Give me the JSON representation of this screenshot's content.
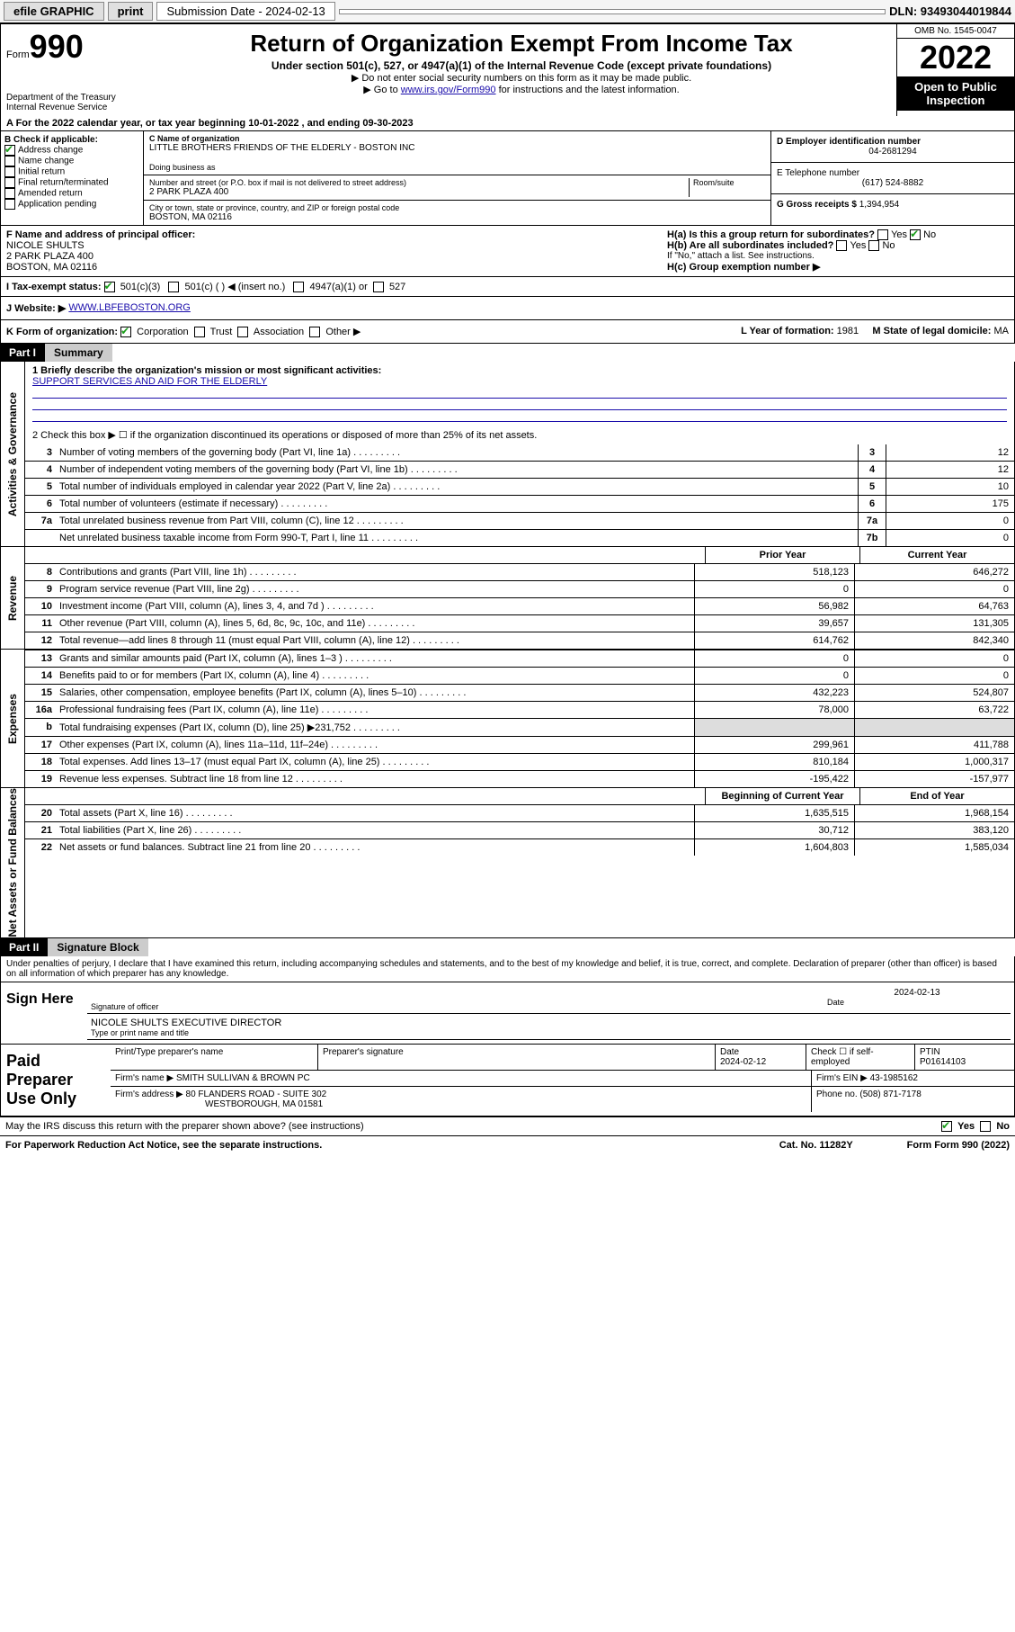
{
  "colors": {
    "bg": "#ffffff",
    "text": "#000000",
    "link": "#1a0dab",
    "check": "#1a9e1a",
    "header_black": "#000000",
    "header_grey": "#cccccc",
    "grey_fill": "#dddddd"
  },
  "topbar": {
    "efile": "efile GRAPHIC",
    "print": "print",
    "sub_label": "Submission Date - 2024-02-13",
    "dln": "DLN: 93493044019844"
  },
  "header": {
    "form_label": "Form",
    "form_number": "990",
    "title": "Return of Organization Exempt From Income Tax",
    "subtitle": "Under section 501(c), 527, or 4947(a)(1) of the Internal Revenue Code (except private foundations)",
    "line1": "▶ Do not enter social security numbers on this form as it may be made public.",
    "line2_pre": "▶ Go to ",
    "line2_link": "www.irs.gov/Form990",
    "line2_post": " for instructions and the latest information.",
    "dept": "Department of the Treasury",
    "irs": "Internal Revenue Service",
    "omb": "OMB No. 1545-0047",
    "year": "2022",
    "open": "Open to Public Inspection"
  },
  "lineA": {
    "text_pre": "A For the 2022 calendar year, or tax year beginning ",
    "begin": "10-01-2022",
    "mid": "  , and ending ",
    "end": "09-30-2023"
  },
  "sectionB": {
    "b_title": "B Check if applicable:",
    "items": [
      {
        "label": "Address change",
        "checked": true
      },
      {
        "label": "Name change",
        "checked": false
      },
      {
        "label": "Initial return",
        "checked": false
      },
      {
        "label": "Final return/terminated",
        "checked": false
      },
      {
        "label": "Amended return",
        "checked": false
      },
      {
        "label": "Application pending",
        "checked": false
      }
    ],
    "c_name_label": "C Name of organization",
    "c_name": "LITTLE BROTHERS FRIENDS OF THE ELDERLY - BOSTON INC",
    "dba_label": "Doing business as",
    "dba": "",
    "street_label": "Number and street (or P.O. box if mail is not delivered to street address)",
    "room_label": "Room/suite",
    "street": "2 PARK PLAZA 400",
    "city_label": "City or town, state or province, country, and ZIP or foreign postal code",
    "city": "BOSTON, MA  02116",
    "d_label": "D Employer identification number",
    "d_ein": "04-2681294",
    "e_label": "E Telephone number",
    "e_phone": "(617) 524-8882",
    "g_label": "G Gross receipts $",
    "g_val": "1,394,954"
  },
  "rowFG": {
    "f_label": "F Name and address of principal officer:",
    "f_name": "NICOLE SHULTS",
    "f_addr1": "2 PARK PLAZA 400",
    "f_addr2": "BOSTON, MA  02116",
    "ha_label": "H(a)  Is this a group return for subordinates?",
    "ha_yes": "Yes",
    "ha_no": "No",
    "hb_label": "H(b)  Are all subordinates included?",
    "hb_yes": "Yes",
    "hb_no": "No",
    "hb_note": "If \"No,\" attach a list. See instructions.",
    "hc_label": "H(c)  Group exemption number ▶"
  },
  "lineI": {
    "label": "I    Tax-exempt status:",
    "opt1": "501(c)(3)",
    "opt2": "501(c) (  ) ◀ (insert no.)",
    "opt3": "4947(a)(1) or",
    "opt4": "527"
  },
  "lineJ": {
    "label": "J   Website: ▶",
    "value": "WWW.LBFEBOSTON.ORG"
  },
  "lineK": {
    "label": "K Form of organization:",
    "opts": [
      "Corporation",
      "Trust",
      "Association",
      "Other ▶"
    ],
    "l_label": "L Year of formation: ",
    "l_val": "1981",
    "m_label": "M State of legal domicile: ",
    "m_val": "MA"
  },
  "partI": {
    "part": "Part I",
    "title": "Summary",
    "q1_label": "1  Briefly describe the organization's mission or most significant activities:",
    "q1_text": "SUPPORT SERVICES AND AID FOR THE ELDERLY",
    "q2": "2   Check this box ▶ ☐  if the organization discontinued its operations or disposed of more than 25% of its net assets."
  },
  "governance": {
    "label": "Activities & Governance",
    "rows": [
      {
        "n": "3",
        "desc": "Number of voting members of the governing body (Part VI, line 1a)",
        "box": "3",
        "val": "12"
      },
      {
        "n": "4",
        "desc": "Number of independent voting members of the governing body (Part VI, line 1b)",
        "box": "4",
        "val": "12"
      },
      {
        "n": "5",
        "desc": "Total number of individuals employed in calendar year 2022 (Part V, line 2a)",
        "box": "5",
        "val": "10"
      },
      {
        "n": "6",
        "desc": "Total number of volunteers (estimate if necessary)",
        "box": "6",
        "val": "175"
      },
      {
        "n": "7a",
        "desc": "Total unrelated business revenue from Part VIII, column (C), line 12",
        "box": "7a",
        "val": "0"
      },
      {
        "n": "",
        "desc": "Net unrelated business taxable income from Form 990-T, Part I, line 11",
        "box": "7b",
        "val": "0"
      }
    ]
  },
  "twocol_headers": {
    "prior": "Prior Year",
    "current": "Current Year"
  },
  "revenue": {
    "label": "Revenue",
    "rows": [
      {
        "n": "8",
        "desc": "Contributions and grants (Part VIII, line 1h)",
        "c1": "518,123",
        "c2": "646,272"
      },
      {
        "n": "9",
        "desc": "Program service revenue (Part VIII, line 2g)",
        "c1": "0",
        "c2": "0"
      },
      {
        "n": "10",
        "desc": "Investment income (Part VIII, column (A), lines 3, 4, and 7d )",
        "c1": "56,982",
        "c2": "64,763"
      },
      {
        "n": "11",
        "desc": "Other revenue (Part VIII, column (A), lines 5, 6d, 8c, 9c, 10c, and 11e)",
        "c1": "39,657",
        "c2": "131,305"
      },
      {
        "n": "12",
        "desc": "Total revenue—add lines 8 through 11 (must equal Part VIII, column (A), line 12)",
        "c1": "614,762",
        "c2": "842,340"
      }
    ]
  },
  "expenses": {
    "label": "Expenses",
    "rows": [
      {
        "n": "13",
        "desc": "Grants and similar amounts paid (Part IX, column (A), lines 1–3 )",
        "c1": "0",
        "c2": "0"
      },
      {
        "n": "14",
        "desc": "Benefits paid to or for members (Part IX, column (A), line 4)",
        "c1": "0",
        "c2": "0"
      },
      {
        "n": "15",
        "desc": "Salaries, other compensation, employee benefits (Part IX, column (A), lines 5–10)",
        "c1": "432,223",
        "c2": "524,807"
      },
      {
        "n": "16a",
        "desc": "Professional fundraising fees (Part IX, column (A), line 11e)",
        "c1": "78,000",
        "c2": "63,722"
      },
      {
        "n": "b",
        "desc": "Total fundraising expenses (Part IX, column (D), line 25) ▶231,752",
        "c1": "",
        "c2": "",
        "grey": true
      },
      {
        "n": "17",
        "desc": "Other expenses (Part IX, column (A), lines 11a–11d, 11f–24e)",
        "c1": "299,961",
        "c2": "411,788"
      },
      {
        "n": "18",
        "desc": "Total expenses. Add lines 13–17 (must equal Part IX, column (A), line 25)",
        "c1": "810,184",
        "c2": "1,000,317"
      },
      {
        "n": "19",
        "desc": "Revenue less expenses. Subtract line 18 from line 12",
        "c1": "-195,422",
        "c2": "-157,977"
      }
    ]
  },
  "netassets": {
    "label": "Net Assets or Fund Balances",
    "head1": "Beginning of Current Year",
    "head2": "End of Year",
    "rows": [
      {
        "n": "20",
        "desc": "Total assets (Part X, line 16)",
        "c1": "1,635,515",
        "c2": "1,968,154"
      },
      {
        "n": "21",
        "desc": "Total liabilities (Part X, line 26)",
        "c1": "30,712",
        "c2": "383,120"
      },
      {
        "n": "22",
        "desc": "Net assets or fund balances. Subtract line 21 from line 20",
        "c1": "1,604,803",
        "c2": "1,585,034"
      }
    ]
  },
  "partII": {
    "part": "Part II",
    "title": "Signature Block",
    "penalties": "Under penalties of perjury, I declare that I have examined this return, including accompanying schedules and statements, and to the best of my knowledge and belief, it is true, correct, and complete. Declaration of preparer (other than officer) is based on all information of which preparer has any knowledge."
  },
  "sign": {
    "label": "Sign Here",
    "sig_officer": "Signature of officer",
    "date_label": "Date",
    "date": "2024-02-13",
    "name": "NICOLE SHULTS  EXECUTIVE DIRECTOR",
    "name_label": "Type or print name and title"
  },
  "prep": {
    "label": "Paid Preparer Use Only",
    "h_name": "Print/Type preparer's name",
    "h_sig": "Preparer's signature",
    "h_date": "Date",
    "date": "2024-02-12",
    "check_label": "Check ☐ if self-employed",
    "ptin_label": "PTIN",
    "ptin": "P01614103",
    "firm_name_label": "Firm's name    ▶",
    "firm_name": "SMITH SULLIVAN & BROWN PC",
    "firm_ein_label": "Firm's EIN ▶",
    "firm_ein": "43-1985162",
    "firm_addr_label": "Firm's address ▶",
    "firm_addr1": "80 FLANDERS ROAD - SUITE 302",
    "firm_addr2": "WESTBOROUGH, MA  01581",
    "phone_label": "Phone no.",
    "phone": "(508) 871-7178"
  },
  "footer": {
    "discuss": "May the IRS discuss this return with the preparer shown above? (see instructions)",
    "yes": "Yes",
    "no": "No",
    "paperwork": "For Paperwork Reduction Act Notice, see the separate instructions.",
    "cat": "Cat. No. 11282Y",
    "form": "Form 990 (2022)"
  }
}
